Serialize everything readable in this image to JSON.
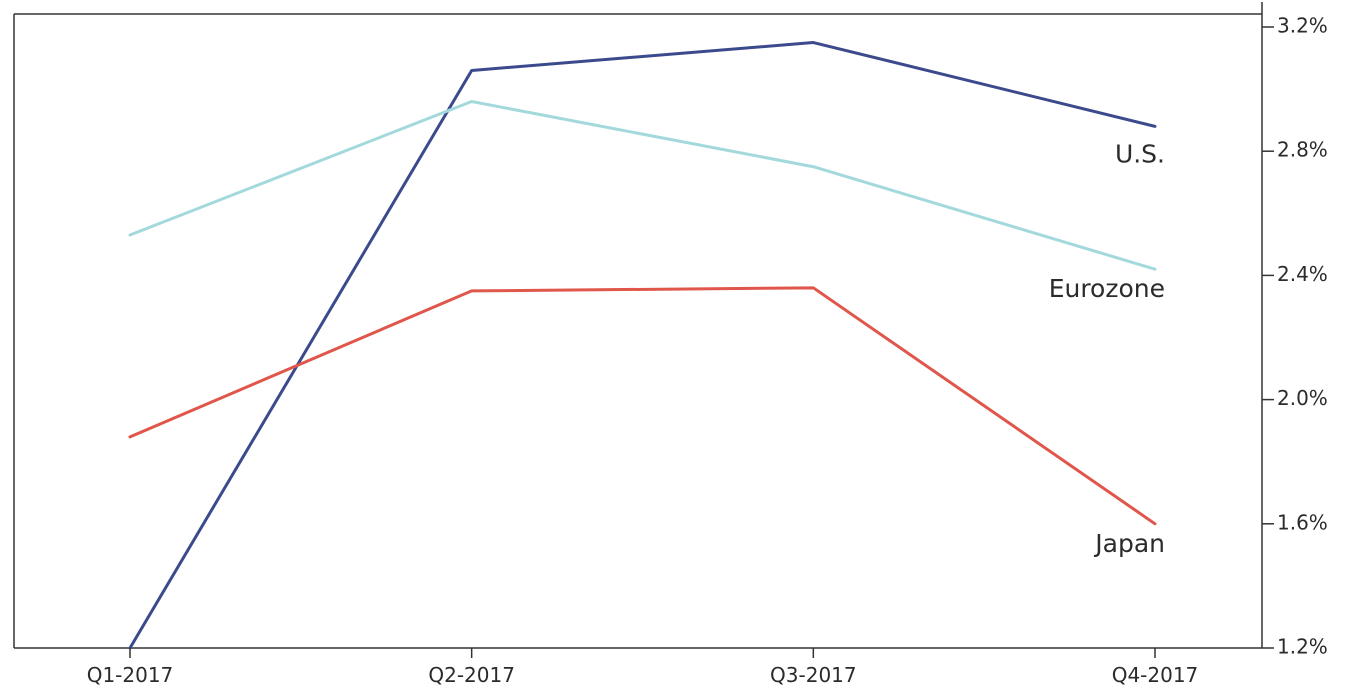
{
  "chart_data": {
    "type": "line",
    "title": "",
    "xlabel": "",
    "ylabel": "",
    "categories": [
      "Q1-2017",
      "Q2-2017",
      "Q3-2017",
      "Q4-2017"
    ],
    "ylim": [
      1.2,
      3.2
    ],
    "yticks": [
      1.2,
      1.6,
      2.0,
      2.4,
      2.8,
      3.2
    ],
    "ytick_labels": [
      "1.2%",
      "1.6%",
      "2.0%",
      "2.4%",
      "2.8%",
      "3.2%"
    ],
    "y_axis_side": "right",
    "grid": false,
    "legend": "inline labels at line ends",
    "series": [
      {
        "name": "U.S.",
        "values": [
          1.2,
          3.06,
          3.15,
          2.88
        ],
        "color": "#3b4a8c"
      },
      {
        "name": "Eurozone",
        "values": [
          2.53,
          2.96,
          2.75,
          2.42
        ],
        "color": "#a3d9dc"
      },
      {
        "name": "Japan",
        "values": [
          1.88,
          2.35,
          2.36,
          1.6
        ],
        "color": "#e0564a"
      }
    ]
  }
}
